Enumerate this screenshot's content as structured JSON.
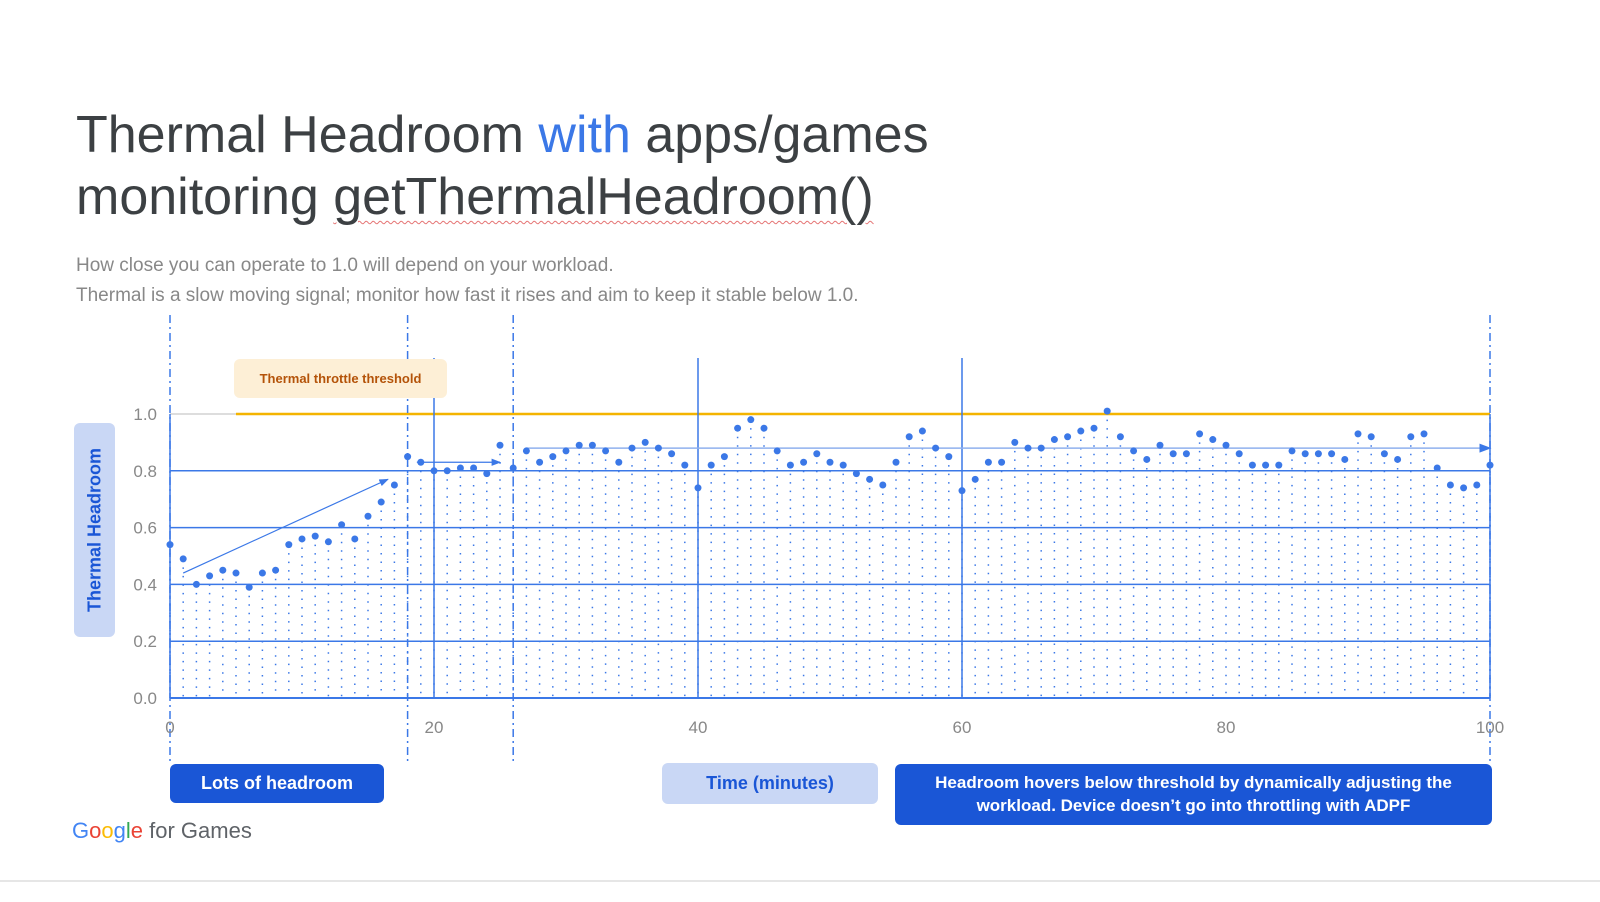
{
  "title": {
    "part1": "Thermal Headroom ",
    "highlight": "with",
    "part2": " apps/games",
    "line2": "getThermalHeadroom()",
    "line2_prefix": "monitoring "
  },
  "subtitle": [
    "How close you can operate to 1.0 will depend on your workload.",
    "Thermal is a slow moving signal; monitor how fast it rises and aim to keep it stable below 1.0."
  ],
  "colors": {
    "accent": "#3b78e7",
    "threshold": "#f4b400",
    "box": "#1a56d6",
    "box_light": "#c9d7f5"
  },
  "labels": {
    "threshold": "Thermal throttle threshold",
    "lots": "Lots of headroom",
    "time": "Time (minutes)",
    "hover": "Headroom hovers below threshold by dynamically adjusting the workload. Device doesn’t go into throttling with ADPF"
  },
  "logo": {
    "google": "Google",
    "rest": " for Games"
  },
  "chart_data": {
    "type": "scatter",
    "xlabel": "Time (minutes)",
    "ylabel": "Thermal Headroom",
    "xlim": [
      0,
      100
    ],
    "ylim": [
      0,
      1.0
    ],
    "xticks": [
      "0",
      "20",
      "40",
      "60",
      "80",
      "100"
    ],
    "yticks": [
      "0.0",
      "0.2",
      "0.4",
      "0.6",
      "0.8",
      "1.0"
    ],
    "threshold": 1.0,
    "grid": true,
    "values": [
      0.54,
      0.49,
      0.4,
      0.43,
      0.45,
      0.44,
      0.39,
      0.44,
      0.45,
      0.54,
      0.56,
      0.57,
      0.55,
      0.61,
      0.56,
      0.64,
      0.69,
      0.75,
      0.85,
      0.83,
      0.8,
      0.8,
      0.81,
      0.81,
      0.79,
      0.89,
      0.81,
      0.87,
      0.83,
      0.85,
      0.87,
      0.89,
      0.89,
      0.87,
      0.83,
      0.88,
      0.9,
      0.88,
      0.86,
      0.82,
      0.74,
      0.82,
      0.85,
      0.95,
      0.98,
      0.95,
      0.87,
      0.82,
      0.83,
      0.86,
      0.83,
      0.82,
      0.79,
      0.77,
      0.75,
      0.83,
      0.92,
      0.94,
      0.88,
      0.85,
      0.73,
      0.77,
      0.83,
      0.83,
      0.9,
      0.88,
      0.88,
      0.91,
      0.92,
      0.94,
      0.95,
      1.01,
      0.92,
      0.87,
      0.84,
      0.89,
      0.86,
      0.86,
      0.93,
      0.91,
      0.89,
      0.86,
      0.82,
      0.82,
      0.82,
      0.87,
      0.86,
      0.86,
      0.86,
      0.84,
      0.93,
      0.92,
      0.86,
      0.84,
      0.92,
      0.93,
      0.81,
      0.75,
      0.74,
      0.75,
      0.82
    ]
  }
}
